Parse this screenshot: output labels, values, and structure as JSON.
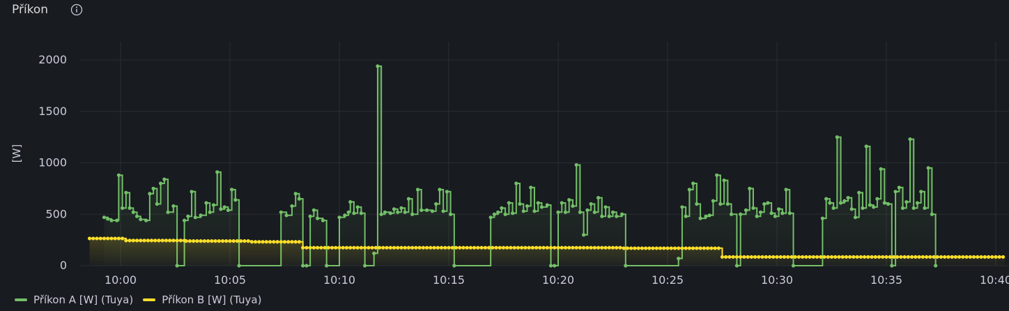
{
  "panel": {
    "title": "Příkon"
  },
  "icons": {
    "info": "info-circle-icon"
  },
  "colors": {
    "background": "#181b1f",
    "grid": "#2a2d33",
    "text": "#ccccdc",
    "series_a": "#73bf69",
    "series_b": "#fade2a"
  },
  "chart_data": {
    "type": "line",
    "ylabel": "[W]",
    "xlabel": "",
    "y_ticks": [
      0,
      500,
      1000,
      1500,
      2000
    ],
    "x_ticks": [
      "10:00",
      "10:05",
      "10:10",
      "10:15",
      "10:20",
      "10:25",
      "10:30",
      "10:35",
      "10:40"
    ],
    "xlim": [
      "09:58:30",
      "10:40:30"
    ],
    "ylim": [
      0,
      2200
    ],
    "grid": true,
    "legend_position": "bottom-left",
    "interpolation": "step-after",
    "series": [
      {
        "name": "Příkon A [W] (Tuya)",
        "color": "#73bf69",
        "fill": true,
        "points": [
          [
            "09:59:15",
            470
          ],
          [
            "09:59:25",
            455
          ],
          [
            "09:59:35",
            440
          ],
          [
            "09:59:50",
            440
          ],
          [
            "09:59:55",
            880
          ],
          [
            "10:00:05",
            560
          ],
          [
            "10:00:15",
            710
          ],
          [
            "10:00:25",
            560
          ],
          [
            "10:00:35",
            520
          ],
          [
            "10:00:45",
            480
          ],
          [
            "10:00:55",
            450
          ],
          [
            "10:01:10",
            440
          ],
          [
            "10:01:20",
            700
          ],
          [
            "10:01:30",
            750
          ],
          [
            "10:01:40",
            600
          ],
          [
            "10:01:50",
            800
          ],
          [
            "10:02:00",
            840
          ],
          [
            "10:02:10",
            520
          ],
          [
            "10:02:25",
            580
          ],
          [
            "10:02:35",
            0
          ],
          [
            "10:02:55",
            440
          ],
          [
            "10:03:05",
            480
          ],
          [
            "10:03:15",
            720
          ],
          [
            "10:03:25",
            470
          ],
          [
            "10:03:40",
            490
          ],
          [
            "10:03:55",
            610
          ],
          [
            "10:04:05",
            520
          ],
          [
            "10:04:15",
            590
          ],
          [
            "10:04:25",
            910
          ],
          [
            "10:04:35",
            550
          ],
          [
            "10:04:45",
            570
          ],
          [
            "10:04:55",
            540
          ],
          [
            "10:05:05",
            740
          ],
          [
            "10:05:15",
            640
          ],
          [
            "10:05:25",
            0
          ],
          [
            "10:07:20",
            520
          ],
          [
            "10:07:35",
            490
          ],
          [
            "10:07:50",
            580
          ],
          [
            "10:08:00",
            700
          ],
          [
            "10:08:10",
            650
          ],
          [
            "10:08:20",
            0
          ],
          [
            "10:08:30",
            0
          ],
          [
            "10:08:40",
            480
          ],
          [
            "10:08:50",
            540
          ],
          [
            "10:09:00",
            460
          ],
          [
            "10:09:15",
            440
          ],
          [
            "10:09:25",
            0
          ],
          [
            "10:10:00",
            470
          ],
          [
            "10:10:15",
            490
          ],
          [
            "10:10:25",
            520
          ],
          [
            "10:10:30",
            620
          ],
          [
            "10:10:40",
            510
          ],
          [
            "10:10:50",
            570
          ],
          [
            "10:11:00",
            510
          ],
          [
            "10:11:10",
            0
          ],
          [
            "10:11:35",
            120
          ],
          [
            "10:11:45",
            1940
          ],
          [
            "10:11:55",
            500
          ],
          [
            "10:12:05",
            520
          ],
          [
            "10:12:20",
            510
          ],
          [
            "10:12:30",
            550
          ],
          [
            "10:12:40",
            520
          ],
          [
            "10:12:50",
            560
          ],
          [
            "10:13:00",
            520
          ],
          [
            "10:13:10",
            650
          ],
          [
            "10:13:20",
            500
          ],
          [
            "10:13:35",
            740
          ],
          [
            "10:13:45",
            540
          ],
          [
            "10:14:00",
            540
          ],
          [
            "10:14:15",
            530
          ],
          [
            "10:14:25",
            600
          ],
          [
            "10:14:35",
            740
          ],
          [
            "10:14:45",
            530
          ],
          [
            "10:14:55",
            720
          ],
          [
            "10:15:05",
            500
          ],
          [
            "10:15:15",
            0
          ],
          [
            "10:16:55",
            470
          ],
          [
            "10:17:05",
            500
          ],
          [
            "10:17:15",
            520
          ],
          [
            "10:17:25",
            560
          ],
          [
            "10:17:35",
            500
          ],
          [
            "10:17:45",
            610
          ],
          [
            "10:17:55",
            510
          ],
          [
            "10:18:05",
            800
          ],
          [
            "10:18:15",
            600
          ],
          [
            "10:18:25",
            530
          ],
          [
            "10:18:35",
            580
          ],
          [
            "10:18:45",
            760
          ],
          [
            "10:18:55",
            530
          ],
          [
            "10:19:05",
            610
          ],
          [
            "10:19:15",
            570
          ],
          [
            "10:19:30",
            590
          ],
          [
            "10:19:40",
            0
          ],
          [
            "10:19:50",
            0
          ],
          [
            "10:20:00",
            520
          ],
          [
            "10:20:10",
            610
          ],
          [
            "10:20:20",
            520
          ],
          [
            "10:20:30",
            640
          ],
          [
            "10:20:40",
            580
          ],
          [
            "10:20:50",
            980
          ],
          [
            "10:21:00",
            520
          ],
          [
            "10:21:10",
            300
          ],
          [
            "10:21:20",
            540
          ],
          [
            "10:21:30",
            600
          ],
          [
            "10:21:40",
            520
          ],
          [
            "10:21:50",
            660
          ],
          [
            "10:22:00",
            480
          ],
          [
            "10:22:10",
            570
          ],
          [
            "10:22:20",
            480
          ],
          [
            "10:22:30",
            520
          ],
          [
            "10:22:40",
            480
          ],
          [
            "10:22:55",
            500
          ],
          [
            "10:23:05",
            0
          ],
          [
            "10:25:30",
            70
          ],
          [
            "10:25:40",
            570
          ],
          [
            "10:25:50",
            480
          ],
          [
            "10:26:00",
            740
          ],
          [
            "10:26:10",
            800
          ],
          [
            "10:26:20",
            600
          ],
          [
            "10:26:30",
            460
          ],
          [
            "10:26:45",
            480
          ],
          [
            "10:26:55",
            490
          ],
          [
            "10:27:05",
            630
          ],
          [
            "10:27:15",
            880
          ],
          [
            "10:27:25",
            600
          ],
          [
            "10:27:35",
            830
          ],
          [
            "10:27:45",
            600
          ],
          [
            "10:27:55",
            500
          ],
          [
            "10:28:10",
            0
          ],
          [
            "10:28:20",
            500
          ],
          [
            "10:28:35",
            540
          ],
          [
            "10:28:45",
            750
          ],
          [
            "10:28:55",
            560
          ],
          [
            "10:29:05",
            480
          ],
          [
            "10:29:15",
            520
          ],
          [
            "10:29:25",
            600
          ],
          [
            "10:29:35",
            610
          ],
          [
            "10:29:45",
            510
          ],
          [
            "10:29:55",
            480
          ],
          [
            "10:30:05",
            550
          ],
          [
            "10:30:15",
            510
          ],
          [
            "10:30:25",
            740
          ],
          [
            "10:30:35",
            510
          ],
          [
            "10:30:45",
            0
          ],
          [
            "10:32:05",
            460
          ],
          [
            "10:32:15",
            650
          ],
          [
            "10:32:25",
            610
          ],
          [
            "10:32:35",
            560
          ],
          [
            "10:32:45",
            1250
          ],
          [
            "10:32:55",
            610
          ],
          [
            "10:33:05",
            630
          ],
          [
            "10:33:15",
            660
          ],
          [
            "10:33:25",
            550
          ],
          [
            "10:33:35",
            470
          ],
          [
            "10:33:45",
            710
          ],
          [
            "10:33:55",
            560
          ],
          [
            "10:34:05",
            1160
          ],
          [
            "10:34:15",
            590
          ],
          [
            "10:34:25",
            570
          ],
          [
            "10:34:35",
            650
          ],
          [
            "10:34:45",
            940
          ],
          [
            "10:34:55",
            610
          ],
          [
            "10:35:05",
            600
          ],
          [
            "10:35:15",
            0
          ],
          [
            "10:35:25",
            720
          ],
          [
            "10:35:35",
            760
          ],
          [
            "10:35:45",
            560
          ],
          [
            "10:35:55",
            620
          ],
          [
            "10:36:05",
            1230
          ],
          [
            "10:36:15",
            560
          ],
          [
            "10:36:25",
            610
          ],
          [
            "10:36:35",
            720
          ],
          [
            "10:36:45",
            560
          ],
          [
            "10:36:55",
            950
          ],
          [
            "10:37:05",
            500
          ],
          [
            "10:37:15",
            0
          ]
        ]
      },
      {
        "name": "Příkon B [W] (Tuya)",
        "color": "#fade2a",
        "fill": true,
        "segments": [
          {
            "from": "09:58:35",
            "to": "10:00:15",
            "value": 265
          },
          {
            "from": "10:00:15",
            "to": "10:03:00",
            "value": 245
          },
          {
            "from": "10:03:00",
            "to": "10:06:00",
            "value": 240
          },
          {
            "from": "10:06:00",
            "to": "10:08:20",
            "value": 232
          },
          {
            "from": "10:08:20",
            "to": "10:23:00",
            "value": 175
          },
          {
            "from": "10:23:00",
            "to": "10:27:30",
            "value": 170
          },
          {
            "from": "10:27:30",
            "to": "10:40:25",
            "value": 85
          }
        ],
        "marker_interval_seconds": 10
      }
    ]
  }
}
